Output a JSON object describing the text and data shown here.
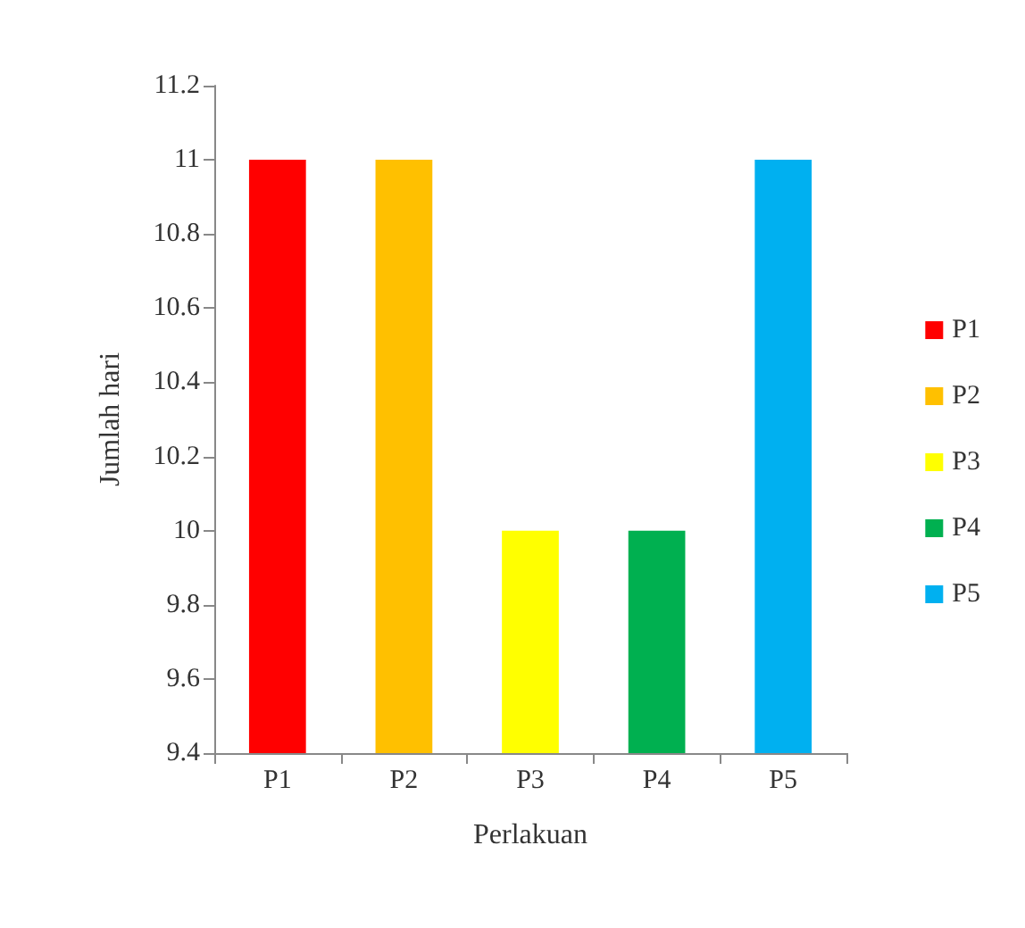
{
  "chart_data": {
    "type": "bar",
    "xlabel": "Perlakuan",
    "ylabel": "Jumlah hari",
    "categories": [
      "P1",
      "P2",
      "P3",
      "P4",
      "P5"
    ],
    "series": [
      {
        "name": "P1",
        "color": "#ff0000",
        "values": [
          11,
          null,
          null,
          null,
          null
        ]
      },
      {
        "name": "P2",
        "color": "#ffc000",
        "values": [
          null,
          11,
          null,
          null,
          null
        ]
      },
      {
        "name": "P3",
        "color": "#ffff00",
        "values": [
          null,
          null,
          10,
          null,
          null
        ]
      },
      {
        "name": "P4",
        "color": "#00b050",
        "values": [
          null,
          null,
          null,
          10,
          null
        ]
      },
      {
        "name": "P5",
        "color": "#00b0f0",
        "values": [
          null,
          null,
          null,
          null,
          11
        ]
      }
    ],
    "ylim": [
      9.4,
      11.2
    ],
    "yticks": [
      9.4,
      9.6,
      9.8,
      10,
      10.2,
      10.4,
      10.6,
      10.8,
      11,
      11.2
    ],
    "grid": false,
    "legend": "right"
  }
}
